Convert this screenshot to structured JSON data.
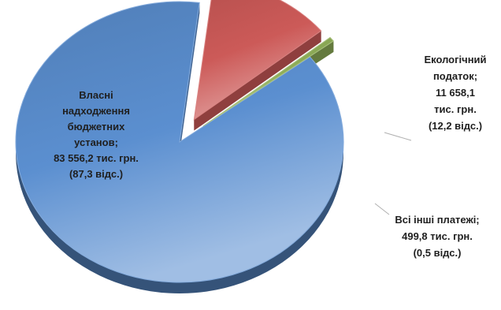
{
  "colors": {
    "background": "#ffffff",
    "label_text": "#1f1f1f",
    "leader_line": "#b0b0b0"
  },
  "chart_data": {
    "type": "pie",
    "style": "3d-exploded",
    "title": "",
    "legend": "none",
    "unit": "тис. грн.",
    "slices": [
      {
        "name": "Власні надходження бюджетних установ",
        "value": 83556.2,
        "percent": 87.3,
        "color": "#5b8fd0",
        "label_lines": [
          "Власні",
          "надходження",
          "бюджетних",
          "установ;",
          "83 556,2 тис. грн.",
          "(87,3 відс.)"
        ]
      },
      {
        "name": "Екологічний податок",
        "value": 11658.1,
        "percent": 12.2,
        "color": "#cc5a58",
        "label_lines": [
          "Екологічний",
          "податок;",
          "11 658,1",
          "тис. грн.",
          "(12,2 відс.)"
        ]
      },
      {
        "name": "Всі інші платежі",
        "value": 499.8,
        "percent": 0.5,
        "color": "#8fae58",
        "label_lines": [
          "Всі інші платежі;",
          "499,8 тис. грн.",
          "(0,5 відс.)"
        ]
      }
    ]
  }
}
